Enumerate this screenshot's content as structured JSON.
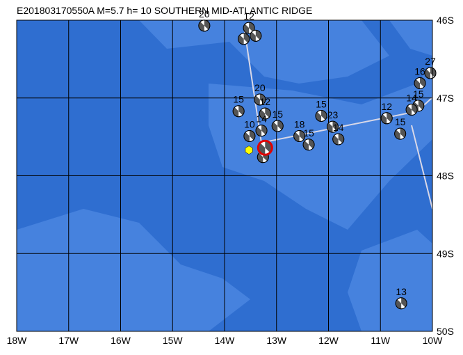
{
  "map": {
    "title": "E201803170550A  M=5.7  h= 10 SOUTHERN MID-ATLANTIC RIDGE",
    "xlim": [
      -18,
      -10
    ],
    "ylim": [
      -50,
      -46
    ],
    "xticks": [
      {
        "value": -18,
        "label": "18W"
      },
      {
        "value": -17,
        "label": "17W"
      },
      {
        "value": -16,
        "label": "16W"
      },
      {
        "value": -15,
        "label": "15W"
      },
      {
        "value": -14,
        "label": "14W"
      },
      {
        "value": -13,
        "label": "13W"
      },
      {
        "value": -12,
        "label": "12W"
      },
      {
        "value": -11,
        "label": "11W"
      },
      {
        "value": -10,
        "label": "10W"
      }
    ],
    "yticks": [
      {
        "value": -46,
        "label": "46S"
      },
      {
        "value": -47,
        "label": "47S"
      },
      {
        "value": -48,
        "label": "48S"
      },
      {
        "value": -49,
        "label": "49S"
      },
      {
        "value": -50,
        "label": "50S"
      }
    ],
    "grid": true,
    "events": [
      {
        "lon": -14.39,
        "lat": -46.07,
        "label": "20"
      },
      {
        "lon": -13.53,
        "lat": -46.1,
        "label": "12"
      },
      {
        "lon": -13.63,
        "lat": -46.24,
        "label": null
      },
      {
        "lon": -13.4,
        "lat": -46.2,
        "label": null
      },
      {
        "lon": -10.04,
        "lat": -46.68,
        "label": "27"
      },
      {
        "lon": -10.24,
        "lat": -46.81,
        "label": "16"
      },
      {
        "lon": -10.27,
        "lat": -47.1,
        "label": "15"
      },
      {
        "lon": -10.4,
        "lat": -47.15,
        "label": "14"
      },
      {
        "lon": -10.88,
        "lat": -47.26,
        "label": "12"
      },
      {
        "lon": -10.62,
        "lat": -47.46,
        "label": "15"
      },
      {
        "lon": -13.73,
        "lat": -47.17,
        "label": "15"
      },
      {
        "lon": -13.32,
        "lat": -47.02,
        "label": "20"
      },
      {
        "lon": -13.22,
        "lat": -47.2,
        "label": "12"
      },
      {
        "lon": -12.98,
        "lat": -47.36,
        "label": "15"
      },
      {
        "lon": -13.52,
        "lat": -47.49,
        "label": "10"
      },
      {
        "lon": -13.29,
        "lat": -47.42,
        "label": "14"
      },
      {
        "lon": -12.56,
        "lat": -47.49,
        "label": "18"
      },
      {
        "lon": -12.38,
        "lat": -47.6,
        "label": "15"
      },
      {
        "lon": -12.14,
        "lat": -47.23,
        "label": "15"
      },
      {
        "lon": -11.92,
        "lat": -47.37,
        "label": "23"
      },
      {
        "lon": -11.81,
        "lat": -47.53,
        "label": "14"
      },
      {
        "lon": -13.26,
        "lat": -47.76,
        "label": null
      },
      {
        "lon": -10.6,
        "lat": -49.64,
        "label": "13"
      }
    ],
    "main_event": {
      "lon": -13.22,
      "lat": -47.64,
      "color": "#e00000"
    },
    "epicenter": {
      "lon": -13.53,
      "lat": -47.67,
      "color": "#ffff00"
    }
  }
}
